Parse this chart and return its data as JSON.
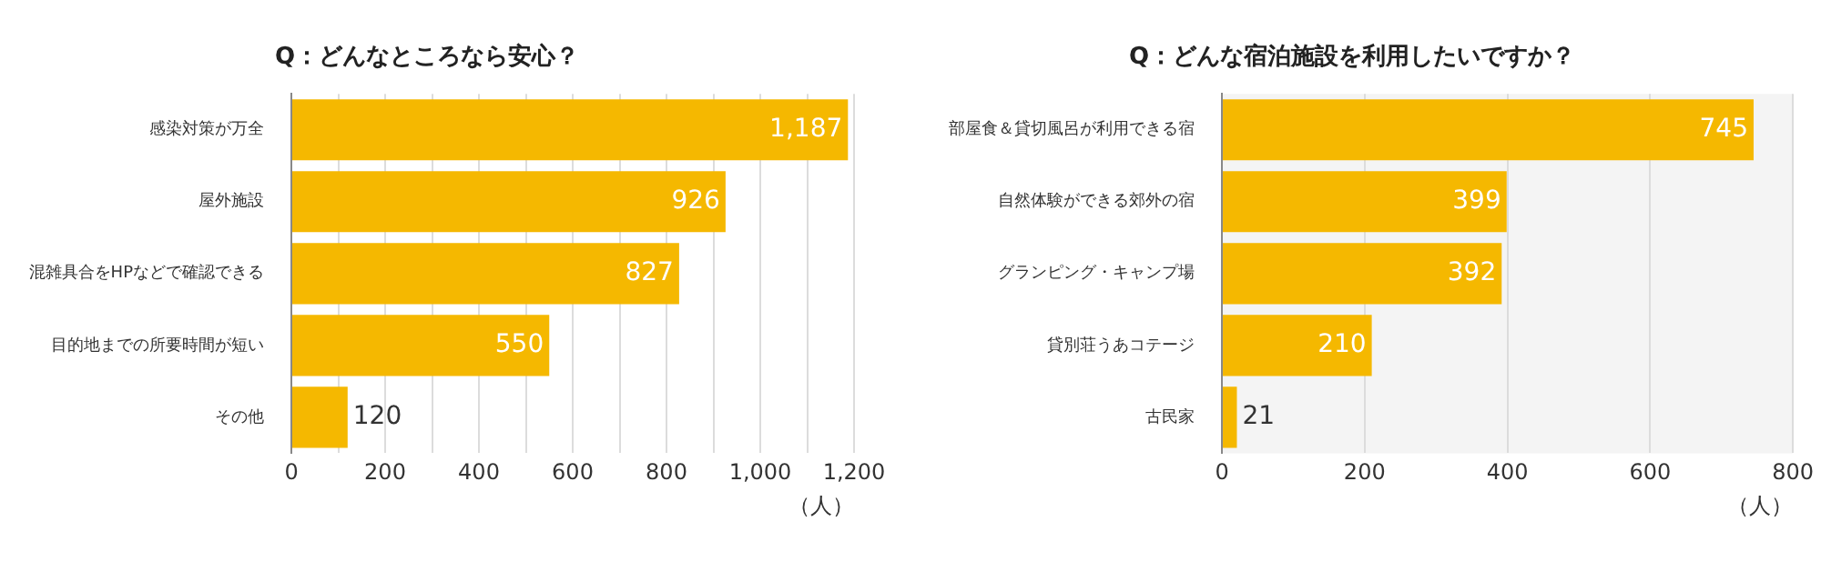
{
  "chart_data": [
    {
      "type": "bar",
      "orientation": "horizontal",
      "title": "Q：どんなところなら安心？",
      "xlabel": "（人）",
      "categories": [
        "感染対策が万全",
        "屋外施設",
        "混雑具合をHPなどで確認できる",
        "目的地までの所要時間が短い",
        "その他"
      ],
      "values": [
        1187,
        926,
        827,
        550,
        120
      ],
      "color": "#f5b800",
      "value_labels": [
        "1,187",
        "926",
        "827",
        "550",
        "120"
      ],
      "xlim": [
        0,
        1200
      ],
      "xticks": [
        0,
        {
          "value": 100,
          "label": null
        },
        200,
        {
          "value": 300,
          "label": null
        },
        400,
        {
          "value": 500,
          "label": null
        },
        600,
        {
          "value": 700,
          "label": null
        },
        800,
        {
          "value": 900,
          "label": null
        },
        {
          "value": 1000,
          "label": "1,000"
        },
        {
          "value": 1100,
          "label": null
        },
        {
          "value": 1200,
          "label": "1,200"
        }
      ],
      "grid": "x",
      "legend": false
    },
    {
      "type": "bar",
      "orientation": "horizontal",
      "title": "Q：どんな宿泊施設を利用したいですか？",
      "xlabel": "（人）",
      "categories": [
        "部屋食＆貸切風呂が利用できる宿",
        "自然体験ができる郊外の宿",
        "グランピング・キャンプ場",
        "貸別荘うあコテージ",
        "古民家"
      ],
      "values": [
        745,
        399,
        392,
        210,
        21
      ],
      "color": "#f5b800",
      "data_labels": true,
      "xlim": [
        0,
        800
      ],
      "xticks": [
        0,
        200,
        400,
        600,
        800
      ],
      "grid": "x",
      "legend": false
    }
  ]
}
